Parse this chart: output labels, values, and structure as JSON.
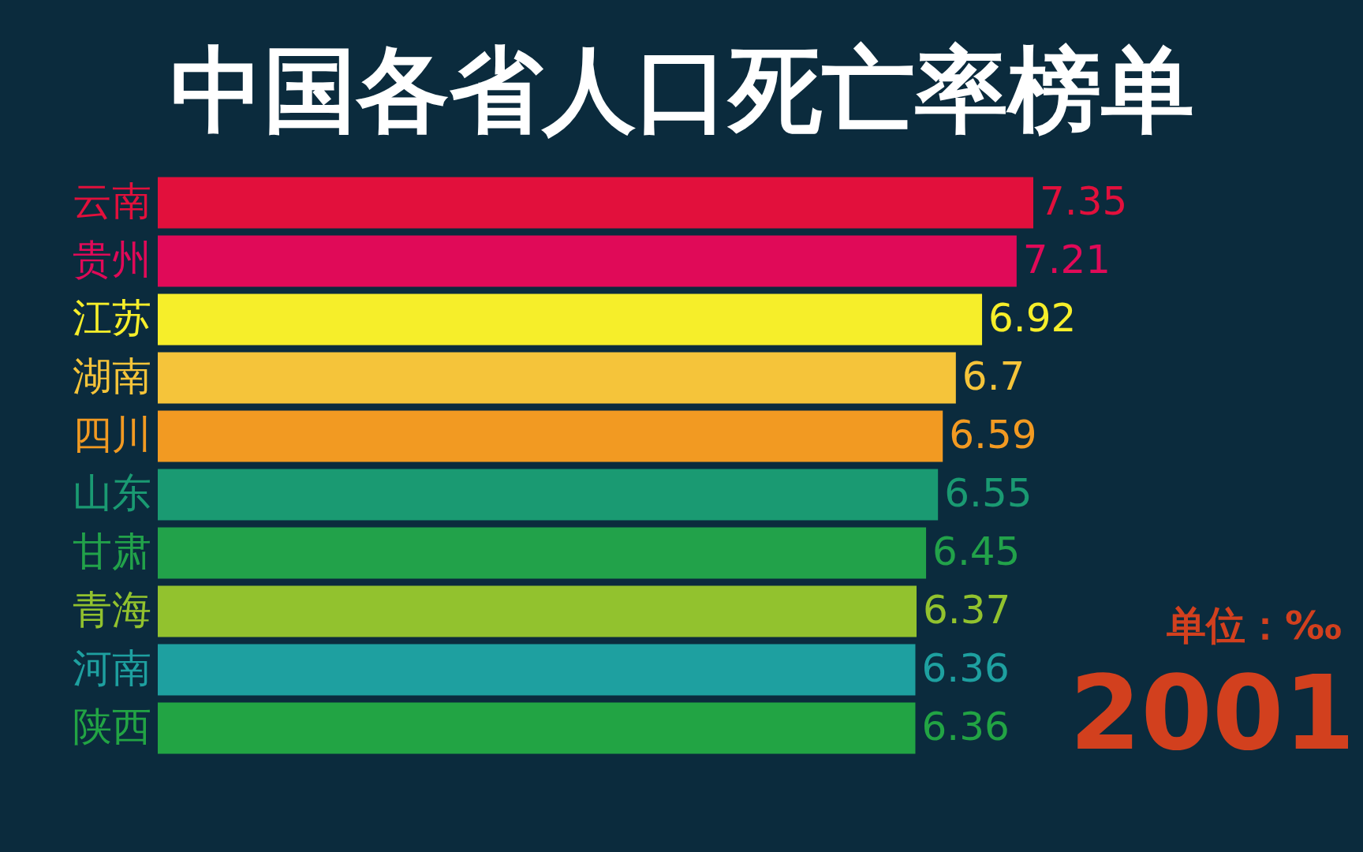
{
  "chart_data": {
    "type": "bar",
    "orientation": "horizontal",
    "title": "中国各省人口死亡率榜单",
    "categories": [
      "云南",
      "贵州",
      "江苏",
      "湖南",
      "四川",
      "山东",
      "甘肃",
      "青海",
      "河南",
      "陕西"
    ],
    "values": [
      7.35,
      7.21,
      6.92,
      6.7,
      6.59,
      6.55,
      6.45,
      6.37,
      6.36,
      6.36
    ],
    "colors": [
      "#e2103c",
      "#e00a58",
      "#f6ee2a",
      "#f5c43a",
      "#f29a22",
      "#1a9a72",
      "#22a24a",
      "#92c22e",
      "#1ea0a0",
      "#22a444"
    ],
    "data_labels": true,
    "annotations": [
      "单位：‰",
      "2001"
    ]
  }
}
